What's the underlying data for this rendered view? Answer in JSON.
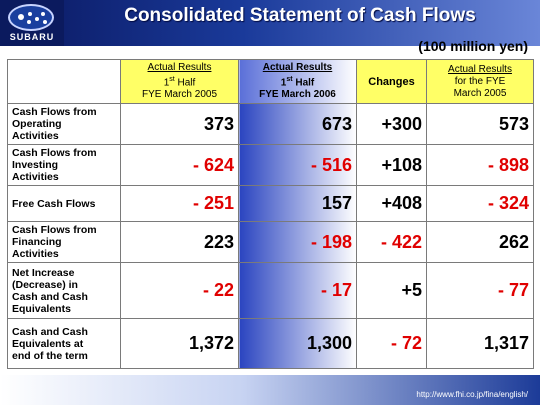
{
  "header": {
    "logo_text": "SUBARU",
    "title": "Consolidated Statement of Cash Flows"
  },
  "unit": "(100 million yen)",
  "columns": [
    {
      "line1": "Actual Results",
      "line2_main": "1",
      "line2_sup": "st",
      "line2_rest": " Half",
      "line3": "FYE March 2005"
    },
    {
      "line1": "Actual Results",
      "line2_main": "1",
      "line2_sup": "st",
      "line2_rest": " Half",
      "line3": "FYE March 2006"
    },
    {
      "label": "Changes"
    },
    {
      "line1": "Actual Results",
      "line2": "for the FYE",
      "line3": "March 2005"
    }
  ],
  "rows": [
    {
      "label": [
        "Cash Flows from",
        "Operating",
        "Activities"
      ],
      "values": [
        "373",
        "673",
        "+300",
        "573"
      ]
    },
    {
      "label": [
        "Cash Flows from",
        "Investing",
        "Activities"
      ],
      "values": [
        "- 624",
        "- 516",
        "+108",
        "- 898"
      ]
    },
    {
      "label": [
        "Free Cash Flows"
      ],
      "values": [
        "- 251",
        "157",
        "+408",
        "- 324"
      ]
    },
    {
      "label": [
        "Cash Flows from",
        "Financing",
        "Activities"
      ],
      "values": [
        "223",
        "- 198",
        "- 422",
        "262"
      ]
    },
    {
      "label": [
        "Net Increase",
        "(Decrease) in",
        "Cash and Cash",
        "Equivalents"
      ],
      "values": [
        "- 22",
        "- 17",
        "+5",
        "- 77"
      ]
    },
    {
      "label": [
        "Cash and Cash",
        "Equivalents at",
        "end of the term"
      ],
      "values": [
        "1,372",
        "1,300",
        "- 72",
        "1,317"
      ]
    }
  ],
  "footer": {
    "url": "http://www.fhi.co.jp/fina/english/"
  },
  "colors": {
    "header_bg": "#1a3a9a",
    "yellow_header": "#ffff66",
    "negative": "#e00000",
    "highlight_column": "#2a44c0"
  }
}
